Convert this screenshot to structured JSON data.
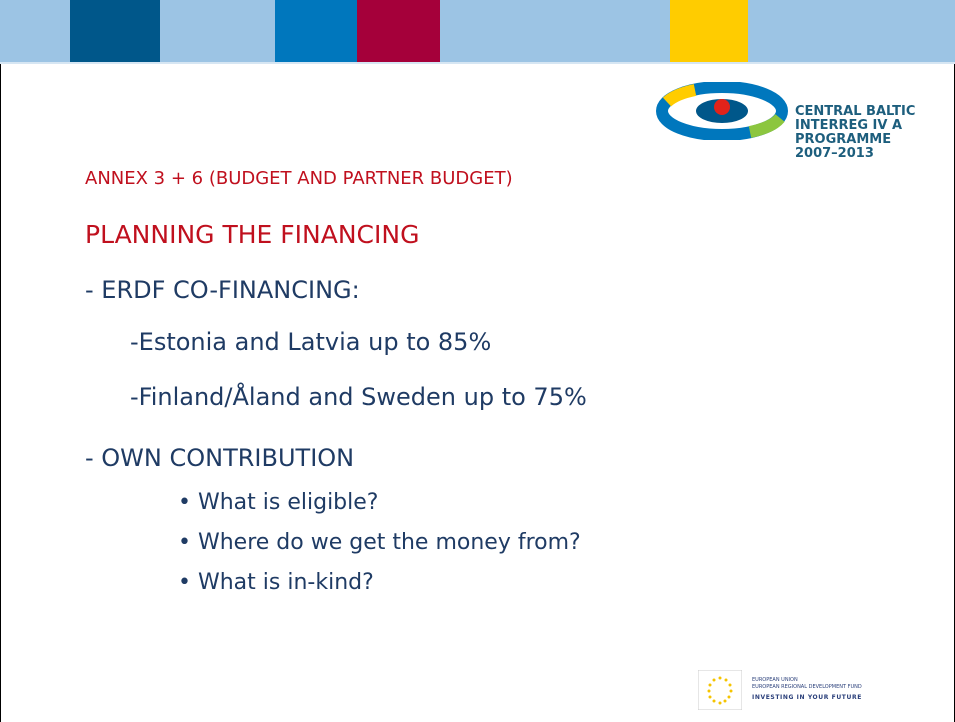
{
  "header": {
    "logo_lines": [
      "CENTRAL BALTIC",
      "INTERREG IV A",
      "PROGRAMME",
      "2007–2013"
    ]
  },
  "slide": {
    "subtitle": "ANNEX 3 + 6 (BUDGET AND PARTNER BUDGET)",
    "title": "PLANNING THE FINANCING",
    "section1": {
      "heading": "- ERDF CO-FINANCING:",
      "items": [
        "-Estonia and Latvia up to 85%",
        "-Finland/Åland and Sweden up to 75%"
      ]
    },
    "section2": {
      "heading": "- OWN CONTRIBUTION",
      "bullets": [
        "What is eligible?",
        "Where do we get the money from?",
        "What is in-kind?"
      ]
    }
  },
  "footer": {
    "eu_lines": [
      "EUROPEAN UNION",
      "EUROPEAN REGIONAL DEVELOPMENT FUND",
      "INVESTING IN YOUR FUTURE"
    ]
  }
}
